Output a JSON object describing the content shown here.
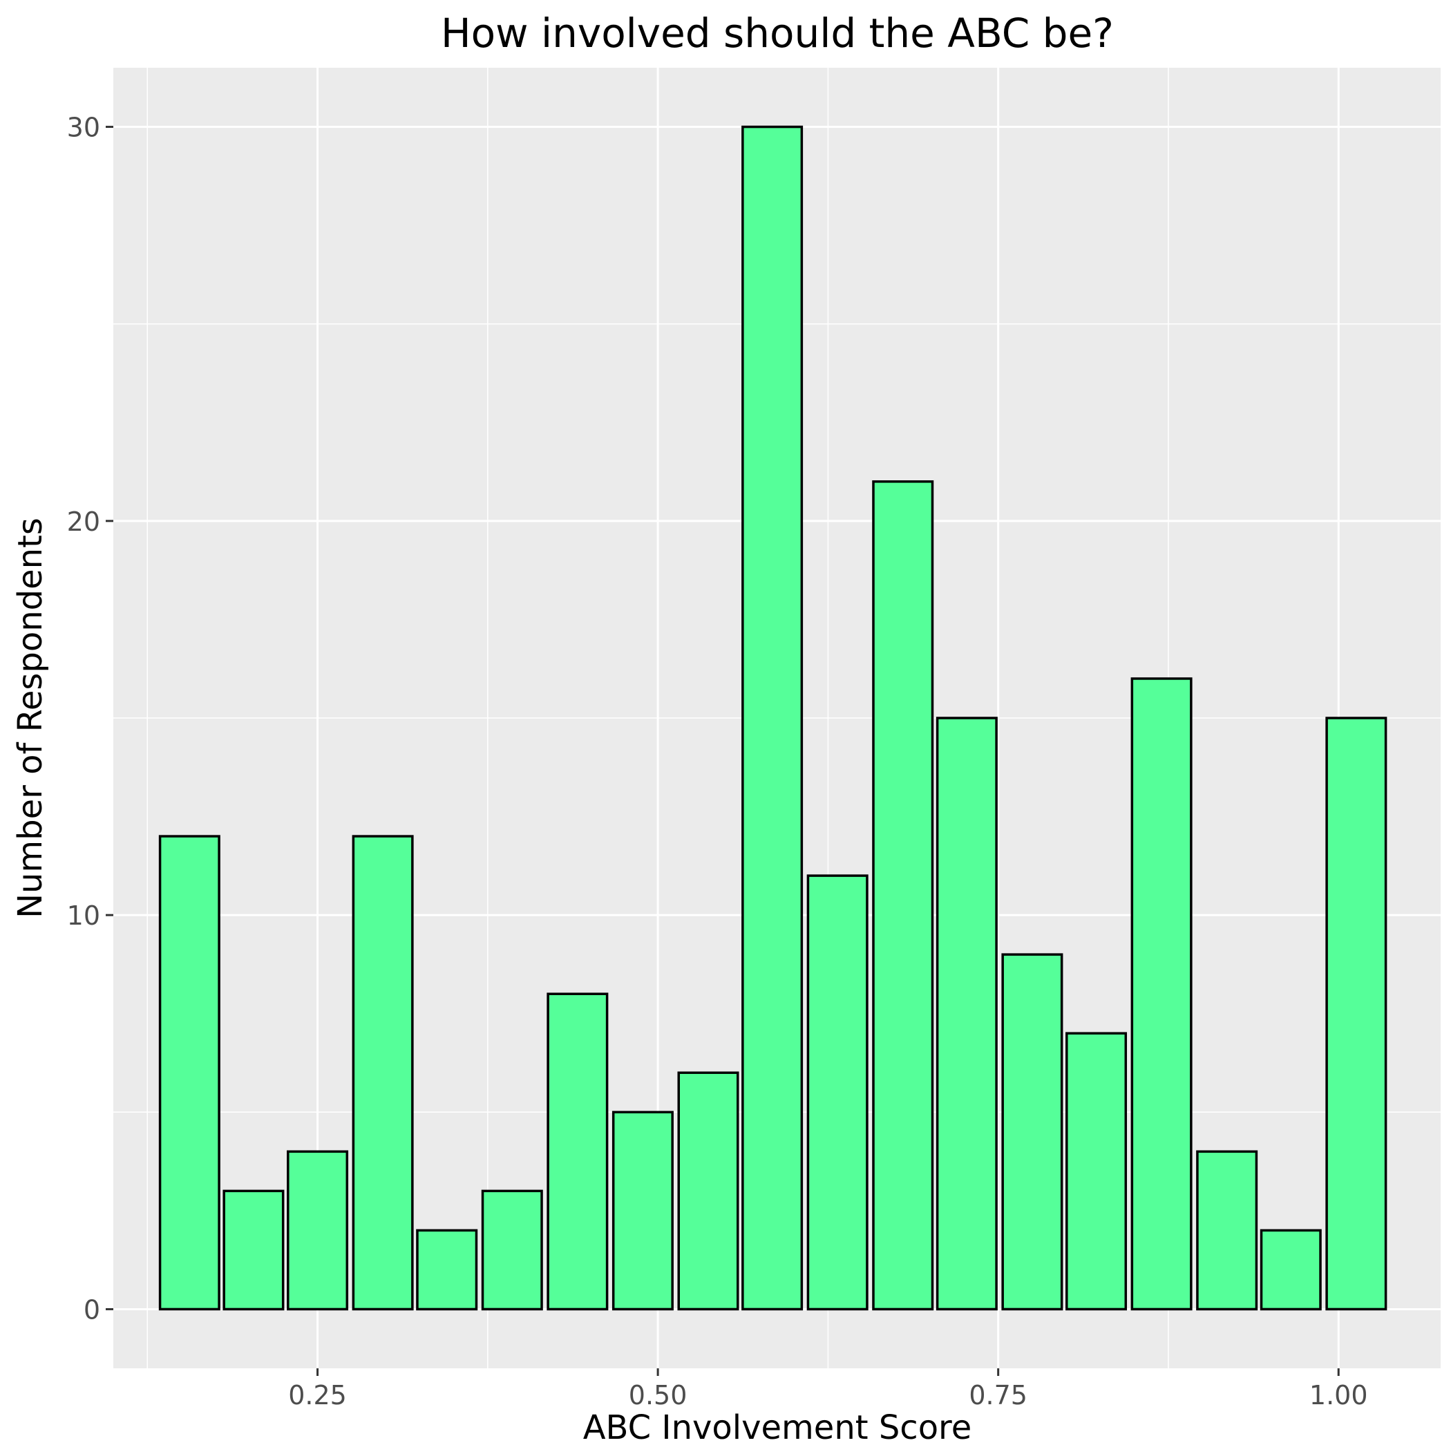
{
  "chart_data": {
    "type": "bar",
    "title": "How involved should the ABC be?",
    "xlabel": "ABC Involvement Score",
    "ylabel": "Number of Respondents",
    "xlim": [
      0.1,
      1.075
    ],
    "ylim": [
      -1.5,
      31.5
    ],
    "x_ticks": [
      0.25,
      0.5,
      0.75,
      1.0
    ],
    "x_tick_labels": [
      "0.25",
      "0.50",
      "0.75",
      "1.00"
    ],
    "y_ticks": [
      0,
      10,
      20,
      30
    ],
    "y_tick_labels": [
      "0",
      "10",
      "20",
      "30"
    ],
    "grid": true,
    "bar_fill": "#55ff99",
    "bar_outline": "#000000",
    "panel_background": "#ebebeb",
    "bar_width": 0.0434,
    "x": [
      0.156,
      0.203,
      0.25,
      0.298,
      0.345,
      0.393,
      0.441,
      0.489,
      0.537,
      0.584,
      0.632,
      0.68,
      0.727,
      0.775,
      0.822,
      0.87,
      0.918,
      0.965,
      1.013
    ],
    "values": [
      12,
      3,
      4,
      12,
      2,
      3,
      8,
      5,
      6,
      30,
      11,
      21,
      15,
      9,
      7,
      16,
      4,
      2,
      15
    ]
  }
}
